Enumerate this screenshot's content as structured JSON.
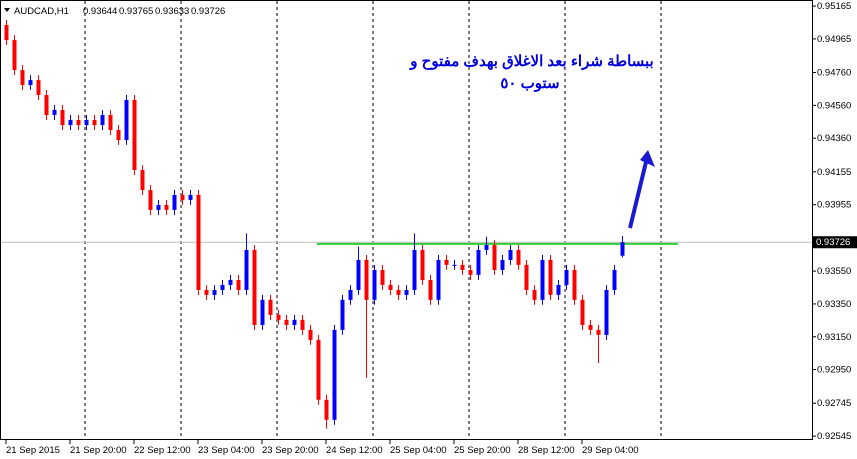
{
  "chart_data": {
    "type": "candlestick",
    "symbol": "AUDCAD,H1",
    "annotation": [
      "ببساطة شراء بعد الاغلاق بهدف مفتوح و",
      "ستوب ٥٠"
    ],
    "up_color": "#0000ff",
    "down_color": "#ff0000",
    "level": {
      "value": 0.93716,
      "color": "#32cd32"
    },
    "ylim": [
      0.92521,
      0.95202
    ],
    "yticks": [
      {
        "value": 0.95165,
        "label": "0.95165"
      },
      {
        "value": 0.94965,
        "label": "0.94965"
      },
      {
        "value": 0.9476,
        "label": "0.94760"
      },
      {
        "value": 0.9456,
        "label": "0.94560"
      },
      {
        "value": 0.9436,
        "label": "0.94360"
      },
      {
        "value": 0.94155,
        "label": "0.94155"
      },
      {
        "value": 0.93955,
        "label": "0.93955"
      },
      {
        "value": 0.9355,
        "label": "0.93550"
      },
      {
        "value": 0.9335,
        "label": "0.93350"
      },
      {
        "value": 0.9315,
        "label": "0.93150"
      },
      {
        "value": 0.9295,
        "label": "0.92950"
      },
      {
        "value": 0.92745,
        "label": "0.92745"
      },
      {
        "value": 0.92545,
        "label": "0.92545"
      }
    ],
    "xlabels": [
      "21 Sep 2015",
      "21 Sep 20:00",
      "22 Sep 12:00",
      "23 Sep 04:00",
      "23 Sep 20:00",
      "24 Sep 12:00",
      "25 Sep 04:00",
      "25 Sep 20:00",
      "28 Sep 12:00",
      "29 Sep 04:00"
    ],
    "candles": {
      "open": [
        0.9505,
        0.94958,
        0.94775,
        0.94684,
        0.94714,
        0.94623,
        0.94501,
        0.94532,
        0.9444,
        0.94471,
        0.9444,
        0.94471,
        0.9444,
        0.94501,
        0.9441,
        0.94349,
        0.94593,
        0.94166,
        0.94044,
        0.93923,
        0.93953,
        0.93923,
        0.94014,
        0.93984,
        0.94014,
        0.93435,
        0.93405,
        0.93435,
        0.93466,
        0.93496,
        0.93435,
        0.93679,
        0.93222,
        0.93375,
        0.93283,
        0.93253,
        0.93222,
        0.93253,
        0.93192,
        0.93131,
        0.92766,
        0.92644,
        0.93192,
        0.93375,
        0.93435,
        0.93618,
        0.93375,
        0.93557,
        0.93466,
        0.93435,
        0.93405,
        0.93435,
        0.93679,
        0.93496,
        0.93375,
        0.93618,
        0.93588,
        0.93588,
        0.93557,
        0.93527,
        0.93679,
        0.93709,
        0.93557,
        0.93618,
        0.93679,
        0.93588,
        0.93435,
        0.93375,
        0.93618,
        0.93405,
        0.93466,
        0.93557,
        0.93375,
        0.93222,
        0.93192,
        0.93161,
        0.93435,
        0.93644
      ],
      "high": [
        0.9508,
        0.94988,
        0.94805,
        0.94744,
        0.94744,
        0.94653,
        0.94562,
        0.94562,
        0.94501,
        0.94501,
        0.94501,
        0.94501,
        0.94531,
        0.94531,
        0.9444,
        0.94623,
        0.94623,
        0.94196,
        0.94074,
        0.93983,
        0.93983,
        0.94044,
        0.94044,
        0.94044,
        0.94044,
        0.93465,
        0.93465,
        0.93496,
        0.93526,
        0.93526,
        0.9378,
        0.93709,
        0.93405,
        0.93405,
        0.93313,
        0.93283,
        0.93283,
        0.93283,
        0.93222,
        0.93161,
        0.92796,
        0.93222,
        0.93405,
        0.93465,
        0.937,
        0.93648,
        0.93587,
        0.93587,
        0.93496,
        0.93465,
        0.93465,
        0.9378,
        0.93709,
        0.93526,
        0.93648,
        0.93648,
        0.93618,
        0.93618,
        0.93587,
        0.93709,
        0.9376,
        0.93739,
        0.93648,
        0.93709,
        0.93709,
        0.93618,
        0.93465,
        0.93648,
        0.93648,
        0.93496,
        0.93587,
        0.93587,
        0.93405,
        0.93252,
        0.93222,
        0.93465,
        0.93587,
        0.93765
      ],
      "low": [
        0.94928,
        0.94745,
        0.94654,
        0.94654,
        0.94593,
        0.94471,
        0.94471,
        0.9441,
        0.9441,
        0.9441,
        0.9441,
        0.9441,
        0.9441,
        0.9438,
        0.94319,
        0.94319,
        0.94136,
        0.94014,
        0.93893,
        0.93893,
        0.93893,
        0.93893,
        0.93954,
        0.93954,
        0.93405,
        0.93375,
        0.93375,
        0.93405,
        0.93436,
        0.93405,
        0.93405,
        0.93192,
        0.93192,
        0.93253,
        0.93223,
        0.93192,
        0.93192,
        0.93162,
        0.93101,
        0.92736,
        0.9259,
        0.92614,
        0.93162,
        0.93345,
        0.93405,
        0.929,
        0.93345,
        0.93436,
        0.93405,
        0.93375,
        0.93375,
        0.93405,
        0.93466,
        0.93345,
        0.93345,
        0.93558,
        0.93558,
        0.93527,
        0.93497,
        0.93497,
        0.93649,
        0.93527,
        0.93527,
        0.93588,
        0.93558,
        0.93405,
        0.93345,
        0.93345,
        0.93375,
        0.93375,
        0.93436,
        0.93345,
        0.93192,
        0.93162,
        0.9299,
        0.93131,
        0.93405,
        0.93633
      ],
      "close": [
        0.94958,
        0.94775,
        0.94684,
        0.94714,
        0.94623,
        0.94501,
        0.94532,
        0.9444,
        0.94471,
        0.9444,
        0.94471,
        0.9444,
        0.94501,
        0.9441,
        0.94349,
        0.94593,
        0.94166,
        0.94044,
        0.93923,
        0.93953,
        0.93923,
        0.94014,
        0.93984,
        0.94014,
        0.93435,
        0.93405,
        0.93435,
        0.93466,
        0.93496,
        0.93435,
        0.93679,
        0.93222,
        0.93375,
        0.93283,
        0.93253,
        0.93222,
        0.93253,
        0.93192,
        0.93131,
        0.92766,
        0.92644,
        0.93192,
        0.93375,
        0.93435,
        0.93618,
        0.93375,
        0.93557,
        0.93466,
        0.93435,
        0.93405,
        0.93435,
        0.93679,
        0.93496,
        0.93375,
        0.93618,
        0.93588,
        0.93588,
        0.93557,
        0.93527,
        0.93679,
        0.93709,
        0.93557,
        0.93618,
        0.93679,
        0.93588,
        0.93435,
        0.93375,
        0.93618,
        0.93405,
        0.93466,
        0.93557,
        0.93375,
        0.93222,
        0.93192,
        0.93161,
        0.93435,
        0.93557,
        0.93726
      ]
    }
  }
}
